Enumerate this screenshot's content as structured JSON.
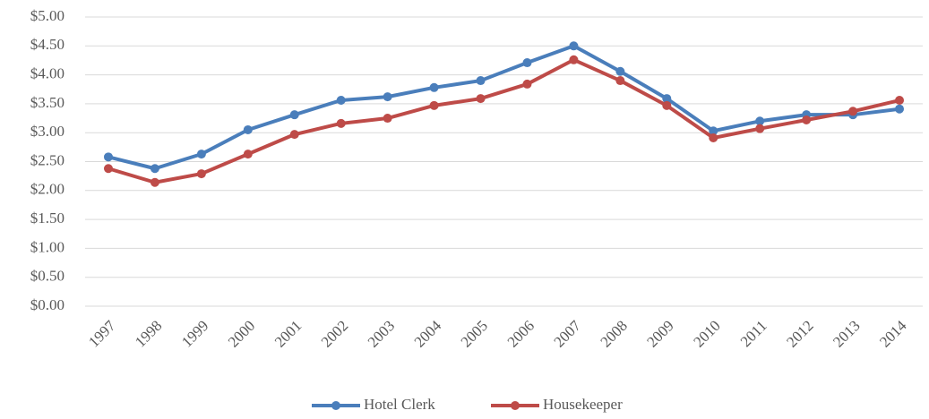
{
  "chart_data": {
    "type": "line",
    "categories": [
      "1997",
      "1998",
      "1999",
      "2000",
      "2001",
      "2002",
      "2003",
      "2004",
      "2005",
      "2006",
      "2007",
      "2008",
      "2009",
      "2010",
      "2011",
      "2012",
      "2013",
      "2014"
    ],
    "series": [
      {
        "name": "Hotel Clerk",
        "color": "#4a7ebb",
        "values": [
          2.58,
          2.38,
          2.63,
          3.05,
          3.31,
          3.56,
          3.62,
          3.78,
          3.9,
          4.21,
          4.5,
          4.06,
          3.59,
          3.03,
          3.2,
          3.31,
          3.31,
          3.41
        ]
      },
      {
        "name": "Housekeeper",
        "color": "#be4b48",
        "values": [
          2.38,
          2.14,
          2.29,
          2.63,
          2.97,
          3.16,
          3.25,
          3.47,
          3.59,
          3.84,
          4.26,
          3.9,
          3.47,
          2.91,
          3.07,
          3.22,
          3.37,
          3.56
        ]
      }
    ],
    "ylim": [
      0,
      5
    ],
    "yticks": [
      {
        "value": 0,
        "label": "$0.00"
      },
      {
        "value": 0.5,
        "label": "$0.50"
      },
      {
        "value": 1,
        "label": "$1.00"
      },
      {
        "value": 1.5,
        "label": "$1.50"
      },
      {
        "value": 2,
        "label": "$2.00"
      },
      {
        "value": 2.5,
        "label": "$2.50"
      },
      {
        "value": 3,
        "label": "$3.00"
      },
      {
        "value": 3.5,
        "label": "$3.50"
      },
      {
        "value": 4,
        "label": "$4.00"
      },
      {
        "value": 4.5,
        "label": "$4.50"
      },
      {
        "value": 5,
        "label": "$5.00"
      }
    ],
    "grid": true,
    "legend": "bottom"
  }
}
